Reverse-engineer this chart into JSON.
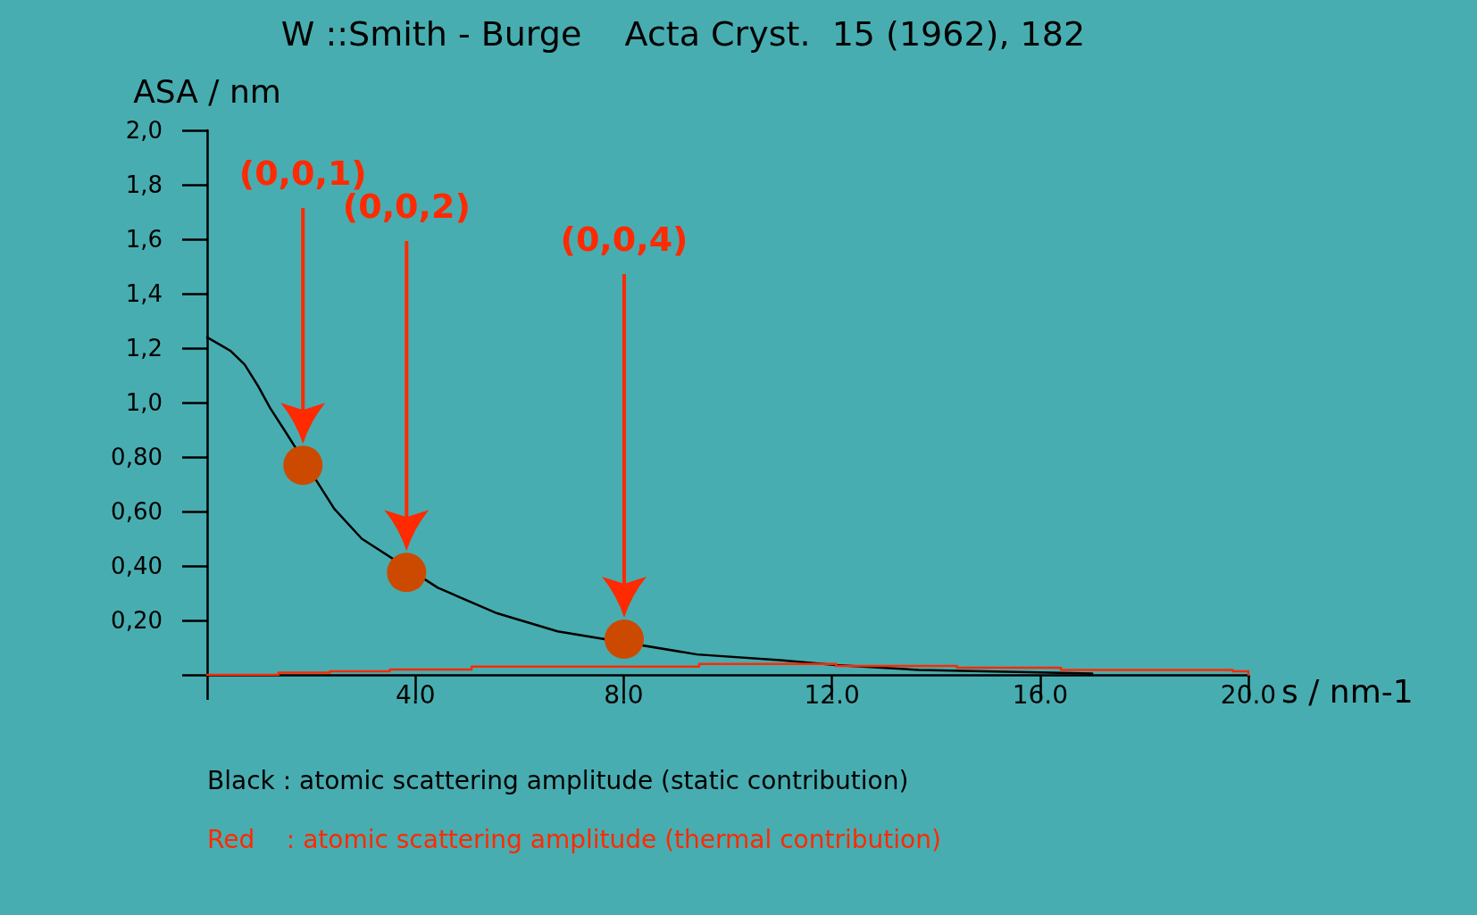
{
  "chart_data": {
    "type": "line",
    "title": "W ::Smith - Burge    Acta Cryst.  15 (1962), 182",
    "xlabel": "s / nm-1",
    "ylabel": "ASA / nm",
    "xlim": [
      0,
      20
    ],
    "xticks": [
      {
        "value": 0,
        "label": null
      },
      {
        "value": 4,
        "label": "4.0"
      },
      {
        "value": 8,
        "label": "8.0"
      },
      {
        "value": 12,
        "label": "12.0"
      },
      {
        "value": 16,
        "label": "16.0"
      },
      {
        "value": 20,
        "label": "20.0"
      }
    ],
    "ylim": [
      0,
      2
    ],
    "yticks": [
      {
        "value": 0,
        "label": null
      },
      {
        "value": 0.2,
        "label": "0,20"
      },
      {
        "value": 0.4,
        "label": "0,40"
      },
      {
        "value": 0.6,
        "label": "0,60"
      },
      {
        "value": 0.8,
        "label": "0,80"
      },
      {
        "value": 1,
        "label": "1,0"
      },
      {
        "value": 1.2,
        "label": "1,2"
      },
      {
        "value": 1.4,
        "label": "1,4"
      },
      {
        "value": 1.6,
        "label": "1,6"
      },
      {
        "value": 1.8,
        "label": "1,8"
      },
      {
        "value": 2,
        "label": "2,0"
      }
    ],
    "grid": false,
    "marker": "none",
    "line_style": "solid",
    "series": [
      {
        "color": "#000000",
        "x": [
          0,
          0.45,
          0.72,
          0.98,
          1.21,
          1.48,
          2.44,
          2.97,
          4.43,
          5.57,
          6.73,
          9.41,
          11.0,
          12.08,
          13.67,
          17.0
        ],
        "values": [
          1.24,
          1.19,
          1.14,
          1.06,
          0.98,
          0.9,
          0.61,
          0.5,
          0.32,
          0.226,
          0.16,
          0.075,
          0.054,
          0.036,
          0.018,
          0.005
        ]
      },
      {
        "type": "step",
        "color": "#ff2a00",
        "x": [
          0,
          1.37,
          2.36,
          3.51,
          5.08,
          9.45,
          12.08,
          14.4,
          16.4,
          19.7,
          20
        ],
        "values": [
          0,
          0.008,
          0.013,
          0.02,
          0.03,
          0.04,
          0.033,
          0.026,
          0.018,
          0.013,
          0
        ]
      },
      {
        "type": "scatter",
        "color": "#cc4a00",
        "marker": "circle",
        "x": [
          1.84,
          3.83,
          8.01
        ],
        "values": [
          0.77,
          0.376,
          0.131
        ]
      }
    ],
    "annotations": [
      "(0,0,1)",
      "(0,0,2)",
      "(0,0,4)",
      "Black : atomic scattering amplitude (static contribution)",
      "Red    : atomic scattering amplitude (thermal contribution)"
    ]
  }
}
